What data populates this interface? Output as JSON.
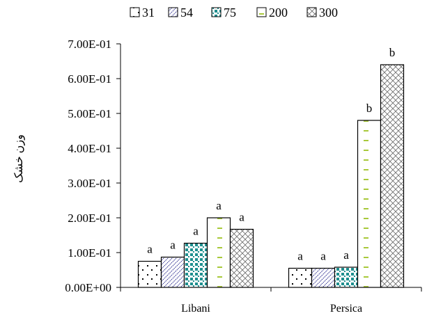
{
  "chart_data": {
    "type": "bar",
    "title": "",
    "xlabel": "",
    "ylabel": "وزن خشک",
    "categories": [
      "Libani",
      "Persica"
    ],
    "ylim": [
      0,
      0.7
    ],
    "yticks": [
      0,
      0.1,
      0.2,
      0.3,
      0.4,
      0.5,
      0.6,
      0.7
    ],
    "ytick_labels": [
      "0.00E+00",
      "1.00E-01",
      "2.00E-01",
      "3.00E-01",
      "4.00E-01",
      "5.00E-01",
      "6.00E-01",
      "7.00E-01"
    ],
    "grid": false,
    "legend_position": "top",
    "series": [
      {
        "name": "31",
        "pattern": "dots",
        "color": "#000000",
        "values": [
          0.075,
          0.055
        ],
        "labels": [
          "a",
          "a"
        ]
      },
      {
        "name": "54",
        "pattern": "diagonal",
        "color": "#2b2b8f",
        "values": [
          0.087,
          0.055
        ],
        "labels": [
          "a",
          "a"
        ]
      },
      {
        "name": "75",
        "pattern": "squares",
        "color": "#1f8f8f",
        "values": [
          0.127,
          0.058
        ],
        "labels": [
          "a",
          "a"
        ]
      },
      {
        "name": "200",
        "pattern": "dashes",
        "color": "#a8c93a",
        "values": [
          0.2,
          0.48
        ],
        "labels": [
          "a",
          "b"
        ]
      },
      {
        "name": "300",
        "pattern": "crosshatch",
        "color": "#6b6b6b",
        "values": [
          0.167,
          0.64
        ],
        "labels": [
          "a",
          "b"
        ]
      }
    ]
  }
}
